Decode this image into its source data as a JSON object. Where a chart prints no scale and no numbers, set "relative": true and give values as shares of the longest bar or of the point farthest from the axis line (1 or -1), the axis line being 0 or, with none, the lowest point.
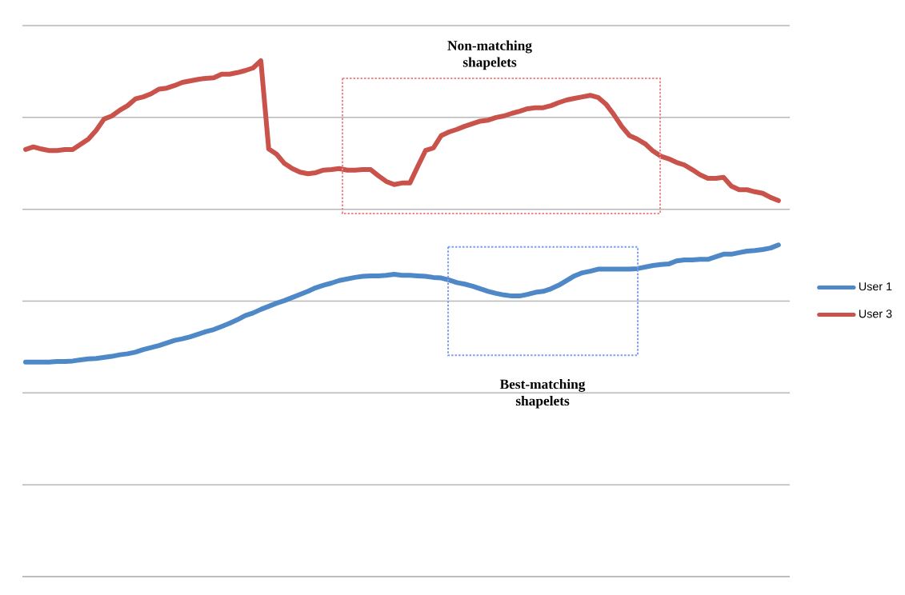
{
  "chart_data": {
    "type": "line",
    "relative": true,
    "grid": "y",
    "legend": "right",
    "annotations": [
      "Non-matching shapelets",
      "Best-matching shapelets"
    ],
    "categories": [
      null,
      null,
      null,
      null,
      null,
      null,
      null,
      null,
      null,
      null,
      null,
      null,
      null,
      null,
      null,
      null,
      null,
      null,
      null,
      null,
      null,
      null,
      null,
      null,
      null,
      null,
      null,
      null,
      null,
      null,
      null,
      null,
      null,
      null,
      null,
      null,
      null,
      null,
      null,
      null,
      null,
      null,
      null,
      null,
      null,
      null,
      null,
      null,
      null,
      null,
      null,
      null,
      null,
      null,
      null,
      null,
      null,
      null,
      null,
      null,
      null,
      null,
      null,
      null,
      null,
      null,
      null,
      null,
      null,
      null,
      null,
      null,
      null,
      null,
      null,
      null,
      null,
      null,
      null,
      null,
      null,
      null,
      null,
      null,
      null,
      null,
      null,
      null,
      null,
      null,
      null,
      null,
      null,
      null,
      null,
      null,
      null
    ],
    "series": [
      {
        "name": "User 1",
        "color": "#4f88c6",
        "values": [
          0.416,
          0.416,
          0.416,
          0.416,
          0.417,
          0.417,
          0.418,
          0.42,
          0.422,
          0.423,
          0.425,
          0.427,
          0.43,
          0.432,
          0.435,
          0.44,
          0.444,
          0.448,
          0.453,
          0.458,
          0.461,
          0.465,
          0.47,
          0.475,
          0.479,
          0.485,
          0.491,
          0.498,
          0.506,
          0.511,
          0.518,
          0.524,
          0.53,
          0.535,
          0.541,
          0.547,
          0.553,
          0.56,
          0.565,
          0.569,
          0.574,
          0.577,
          0.58,
          0.582,
          0.583,
          0.583,
          0.584,
          0.586,
          0.584,
          0.584,
          0.583,
          0.582,
          0.58,
          0.579,
          0.575,
          0.57,
          0.567,
          0.563,
          0.558,
          0.553,
          0.549,
          0.546,
          0.544,
          0.544,
          0.547,
          0.551,
          0.553,
          0.558,
          0.565,
          0.574,
          0.583,
          0.589,
          0.592,
          0.596,
          0.596,
          0.596,
          0.596,
          0.596,
          0.597,
          0.6,
          0.603,
          0.605,
          0.606,
          0.612,
          0.614,
          0.614,
          0.615,
          0.615,
          0.62,
          0.625,
          0.625,
          0.628,
          0.631,
          0.632,
          0.634,
          0.637,
          0.643
        ]
      },
      {
        "name": "User 3",
        "color": "#c9524b",
        "values": [
          0.828,
          0.833,
          0.829,
          0.826,
          0.826,
          0.828,
          0.828,
          0.838,
          0.848,
          0.865,
          0.887,
          0.893,
          0.904,
          0.913,
          0.926,
          0.93,
          0.936,
          0.945,
          0.947,
          0.952,
          0.958,
          0.961,
          0.964,
          0.966,
          0.967,
          0.974,
          0.974,
          0.977,
          0.981,
          0.986,
          1,
          0.829,
          0.819,
          0.801,
          0.791,
          0.784,
          0.781,
          0.783,
          0.788,
          0.789,
          0.791,
          0.788,
          0.788,
          0.789,
          0.789,
          0.777,
          0.766,
          0.76,
          0.763,
          0.763,
          0.795,
          0.826,
          0.831,
          0.855,
          0.862,
          0.867,
          0.873,
          0.878,
          0.883,
          0.885,
          0.89,
          0.893,
          0.898,
          0.902,
          0.907,
          0.909,
          0.909,
          0.913,
          0.919,
          0.924,
          0.927,
          0.93,
          0.933,
          0.929,
          0.916,
          0.896,
          0.873,
          0.855,
          0.848,
          0.839,
          0.825,
          0.815,
          0.81,
          0.803,
          0.798,
          0.789,
          0.779,
          0.772,
          0.772,
          0.774,
          0.757,
          0.75,
          0.75,
          0.746,
          0.743,
          0.735,
          0.729
        ]
      }
    ]
  }
}
